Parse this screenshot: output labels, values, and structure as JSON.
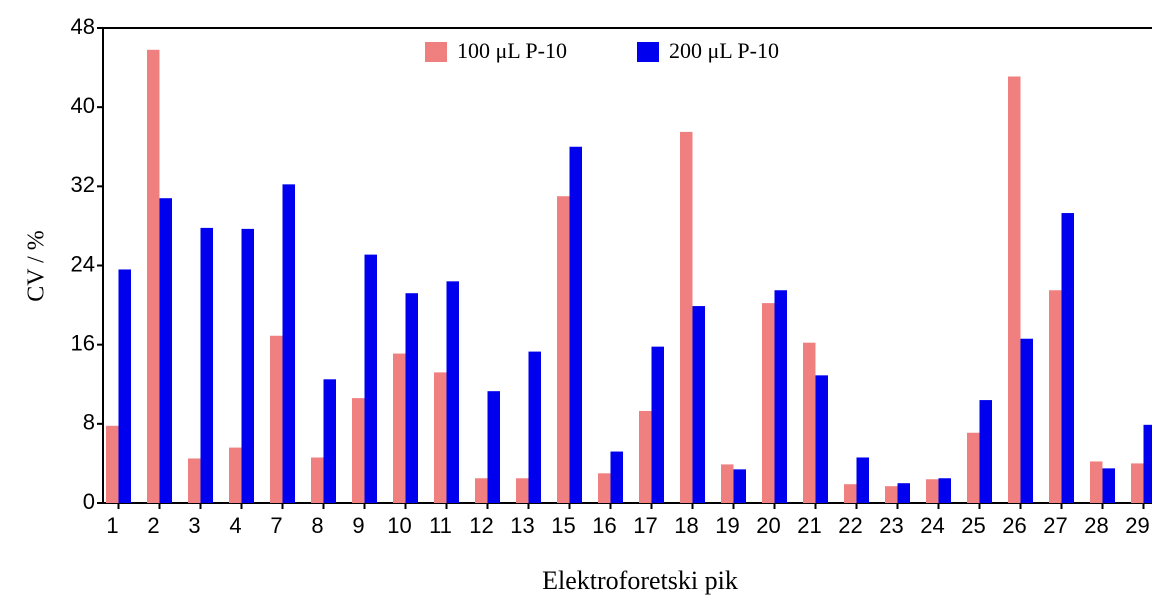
{
  "chart_data": {
    "type": "bar",
    "x_label": "Elektroforetski pik",
    "y_label": "CV / %",
    "categories": [
      "1",
      "2",
      "3",
      "4",
      "7",
      "8",
      "9",
      "10",
      "11",
      "12",
      "13",
      "15",
      "16",
      "17",
      "18",
      "19",
      "20",
      "21",
      "22",
      "23",
      "24",
      "25",
      "26",
      "27",
      "28",
      "29"
    ],
    "series": [
      {
        "name": "100 μL P-10",
        "color": "#f08080",
        "values": [
          7.8,
          45.8,
          4.5,
          5.6,
          16.9,
          4.6,
          10.6,
          15.1,
          13.2,
          2.5,
          2.5,
          31.0,
          3.0,
          9.3,
          37.5,
          3.9,
          20.2,
          16.2,
          1.9,
          1.7,
          2.4,
          7.1,
          43.1,
          21.5,
          4.2,
          4.0
        ]
      },
      {
        "name": "200 μL P-10",
        "color": "#0000ee",
        "values": [
          23.6,
          30.8,
          27.8,
          27.7,
          32.2,
          12.5,
          25.1,
          21.2,
          22.4,
          11.3,
          15.3,
          36.0,
          5.2,
          15.8,
          19.9,
          3.4,
          21.5,
          12.9,
          4.6,
          2.0,
          2.5,
          10.4,
          16.6,
          29.3,
          3.5,
          7.9
        ]
      }
    ],
    "ylim": [
      0,
      48
    ],
    "yticks": [
      0,
      8,
      16,
      24,
      32,
      40,
      48
    ],
    "grid": false
  }
}
